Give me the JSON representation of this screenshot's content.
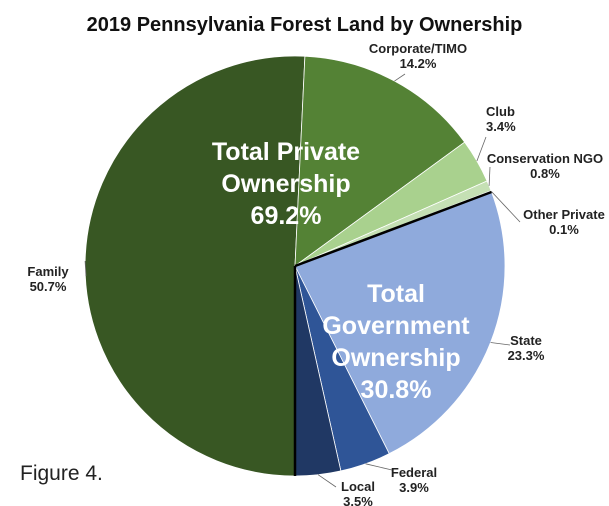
{
  "chart_data": {
    "type": "pie",
    "title": "2019 Pennsylvania Forest Land by Ownership",
    "slices": [
      {
        "label": "Family",
        "value": 50.7,
        "value_label": "50.7%",
        "color": "#385723"
      },
      {
        "label": "Corporate/TIMO",
        "value": 14.2,
        "value_label": "14.2%",
        "color": "#548235"
      },
      {
        "label": "Club",
        "value": 3.4,
        "value_label": "3.4%",
        "color": "#a9d18e"
      },
      {
        "label": "Conservation NGO",
        "value": 0.8,
        "value_label": "0.8%",
        "color": "#c5e0b4"
      },
      {
        "label": "Other Private",
        "value": 0.1,
        "value_label": "0.1%",
        "color": "#e2f0d9"
      },
      {
        "label": "State",
        "value": 23.3,
        "value_label": "23.3%",
        "color": "#8faadc"
      },
      {
        "label": "Federal",
        "value": 3.9,
        "value_label": "3.9%",
        "color": "#2f5597"
      },
      {
        "label": "Local",
        "value": 3.5,
        "value_label": "3.5%",
        "color": "#203864"
      }
    ],
    "groups": [
      {
        "lines": [
          "Total Private",
          "Ownership",
          "69.2%"
        ],
        "value": 69.2
      },
      {
        "lines": [
          "Total",
          "Government",
          "Ownership",
          "30.8%"
        ],
        "value": 30.8
      }
    ]
  },
  "caption": "Figure 4."
}
